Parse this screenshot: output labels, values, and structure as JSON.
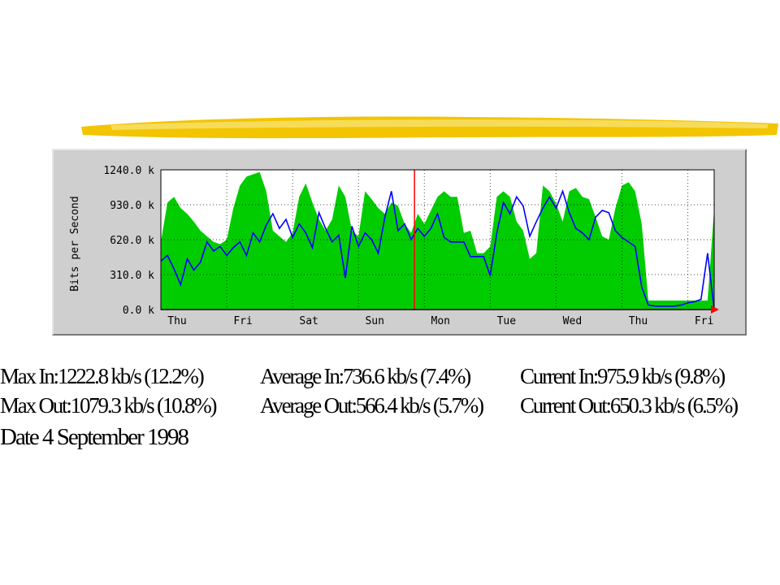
{
  "decoration": {
    "stroke_color": "#f2c500",
    "stroke_color_light": "#f7dc5a"
  },
  "chart_data": {
    "type": "area",
    "ylabel": "Bits per Second",
    "y_tick_labels": [
      "1240.0 k",
      "930.0 k",
      "620.0 k",
      "310.0 k",
      "0.0 k"
    ],
    "y_ticks": [
      1240,
      930,
      620,
      310,
      0
    ],
    "ylim": [
      0,
      1240
    ],
    "x_tick_labels": [
      "Thu",
      "Fri",
      "Sat",
      "Sun",
      "Mon",
      "Tue",
      "Wed",
      "Thu",
      "Fri"
    ],
    "grid": true,
    "colors": {
      "in": "#00cc00",
      "out": "#0000ff",
      "marker": "#ff0000",
      "plot_bg": "#ffffff"
    },
    "days_span": 8.4,
    "marker_day": 3.85,
    "series": [
      {
        "key": "in",
        "style": "filled",
        "x": [
          0,
          0.1,
          0.2,
          0.3,
          0.4,
          0.5,
          0.6,
          0.7,
          0.8,
          0.9,
          1.0,
          1.1,
          1.2,
          1.3,
          1.4,
          1.5,
          1.6,
          1.7,
          1.8,
          1.9,
          2.0,
          2.1,
          2.2,
          2.3,
          2.4,
          2.5,
          2.6,
          2.7,
          2.8,
          2.9,
          3.0,
          3.1,
          3.2,
          3.3,
          3.4,
          3.5,
          3.6,
          3.7,
          3.8,
          3.9,
          4.0,
          4.1,
          4.2,
          4.3,
          4.4,
          4.5,
          4.6,
          4.7,
          4.8,
          4.9,
          5.0,
          5.1,
          5.2,
          5.3,
          5.4,
          5.5,
          5.6,
          5.7,
          5.8,
          5.9,
          6.0,
          6.1,
          6.2,
          6.3,
          6.4,
          6.5,
          6.6,
          6.7,
          6.8,
          6.9,
          7.0,
          7.1,
          7.2,
          7.3,
          7.4,
          7.5,
          7.6,
          7.7,
          7.8,
          7.9,
          8.0,
          8.1,
          8.2,
          8.3,
          8.4
        ],
        "values": [
          600,
          950,
          1000,
          900,
          850,
          780,
          700,
          650,
          600,
          580,
          620,
          900,
          1100,
          1180,
          1200,
          1220,
          1050,
          700,
          650,
          600,
          680,
          1000,
          1120,
          950,
          800,
          700,
          800,
          1100,
          1000,
          700,
          650,
          1050,
          980,
          900,
          850,
          950,
          920,
          760,
          680,
          850,
          760,
          880,
          1000,
          1050,
          1000,
          1000,
          680,
          700,
          500,
          500,
          560,
          1000,
          1050,
          1000,
          780,
          700,
          450,
          500,
          1100,
          1050,
          940,
          780,
          1050,
          1080,
          1000,
          980,
          820,
          650,
          620,
          900,
          1100,
          1130,
          1050,
          760,
          80,
          80,
          80,
          80,
          80,
          80,
          80,
          80,
          80,
          80,
          900
        ]
      },
      {
        "key": "out",
        "style": "line",
        "x": [
          0,
          0.1,
          0.2,
          0.3,
          0.4,
          0.5,
          0.6,
          0.7,
          0.8,
          0.9,
          1.0,
          1.1,
          1.2,
          1.3,
          1.4,
          1.5,
          1.6,
          1.7,
          1.8,
          1.9,
          2.0,
          2.1,
          2.2,
          2.3,
          2.4,
          2.5,
          2.6,
          2.7,
          2.8,
          2.9,
          3.0,
          3.1,
          3.2,
          3.3,
          3.4,
          3.5,
          3.6,
          3.7,
          3.8,
          3.9,
          4.0,
          4.1,
          4.2,
          4.3,
          4.4,
          4.5,
          4.6,
          4.7,
          4.8,
          4.9,
          5.0,
          5.1,
          5.2,
          5.3,
          5.4,
          5.5,
          5.6,
          5.7,
          5.8,
          5.9,
          6.0,
          6.1,
          6.2,
          6.3,
          6.4,
          6.5,
          6.6,
          6.7,
          6.8,
          6.9,
          7.0,
          7.1,
          7.2,
          7.3,
          7.4,
          7.5,
          7.6,
          7.7,
          7.8,
          7.9,
          8.0,
          8.1,
          8.2,
          8.3,
          8.4
        ],
        "values": [
          430,
          480,
          360,
          220,
          450,
          350,
          420,
          600,
          520,
          560,
          480,
          550,
          600,
          480,
          680,
          600,
          750,
          850,
          720,
          800,
          640,
          760,
          680,
          550,
          860,
          720,
          600,
          660,
          280,
          740,
          560,
          680,
          620,
          500,
          820,
          1050,
          700,
          760,
          620,
          720,
          650,
          720,
          850,
          640,
          600,
          600,
          600,
          470,
          470,
          470,
          300,
          680,
          950,
          850,
          1000,
          920,
          650,
          780,
          900,
          1000,
          900,
          1050,
          860,
          720,
          680,
          620,
          820,
          880,
          860,
          700,
          640,
          600,
          560,
          200,
          40,
          30,
          30,
          30,
          30,
          40,
          60,
          70,
          90,
          500,
          0
        ]
      }
    ]
  },
  "stats": {
    "max_in": "Max In:1222.8 kb/s (12.2%)",
    "max_out": "Max Out:1079.3 kb/s (10.8%)",
    "average_in": "Average In:736.6 kb/s (7.4%)",
    "average_out": "Average Out:566.4 kb/s (5.7%)",
    "current_in": "Current In:975.9 kb/s (9.8%)",
    "current_out": "Current Out:650.3 kb/s (6.5%)",
    "date": "Date 4 September 1998"
  }
}
